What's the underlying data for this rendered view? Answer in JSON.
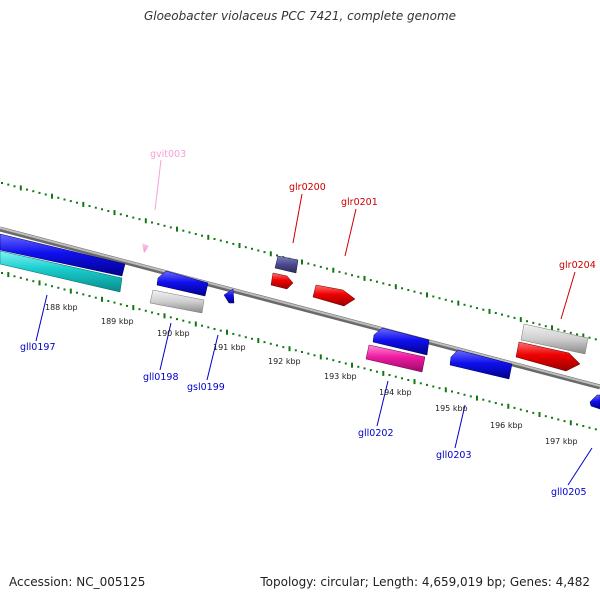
{
  "title": "Gloeobacter violaceus PCC 7421, complete genome",
  "footer": {
    "accession": "Accession: NC_005125",
    "topology": "Topology: circular; Length: 4,659,019 bp; Genes: 4,482"
  },
  "ruler_ticks": [
    "188 kbp",
    "189 kbp",
    "190 kbp",
    "191 kbp",
    "192 kbp",
    "193 kbp",
    "194 kbp",
    "195 kbp",
    "196 kbp",
    "197 kbp"
  ],
  "genes": [
    {
      "name": "gvit003",
      "color": "#f7a1d8"
    },
    {
      "name": "glr0200",
      "color": "#cc0000"
    },
    {
      "name": "glr0201",
      "color": "#cc0000"
    },
    {
      "name": "glr0204",
      "color": "#cc0000"
    },
    {
      "name": "gll0197",
      "color": "#0000cc"
    },
    {
      "name": "gll0198",
      "color": "#0000cc"
    },
    {
      "name": "gsl0199",
      "color": "#0000cc"
    },
    {
      "name": "gll0202",
      "color": "#0000cc"
    },
    {
      "name": "gll0203",
      "color": "#0000cc"
    },
    {
      "name": "gll0205",
      "color": "#0000cc"
    }
  ],
  "colors": {
    "forward": "#ff0000",
    "reverse": "#0000ff",
    "rna": "#cccccc",
    "tick": "#117711",
    "backbone": "#888888"
  }
}
